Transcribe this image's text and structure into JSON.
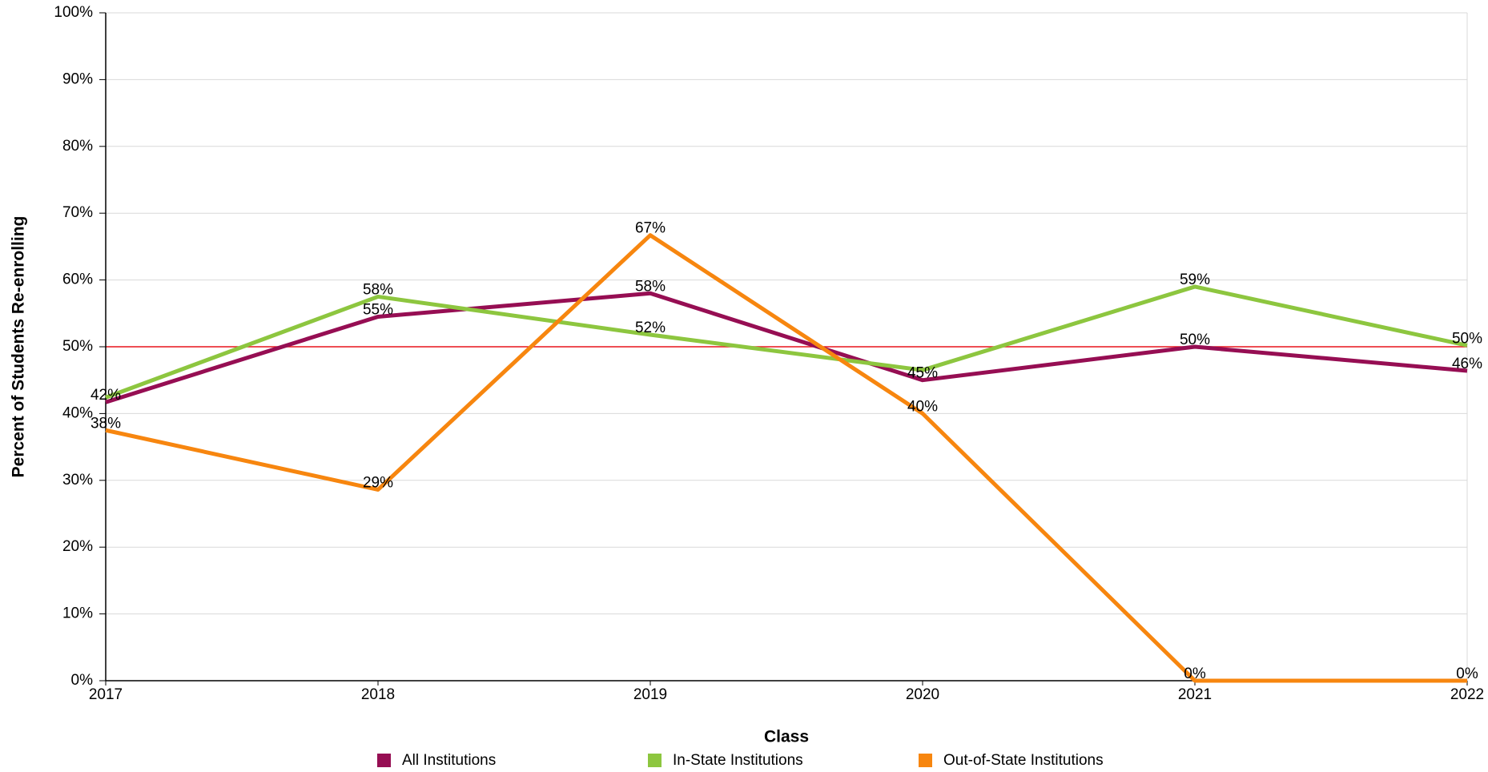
{
  "chart_data": {
    "type": "line",
    "x_label": "Class",
    "y_label": "Percent of Students Re-enrolling",
    "categories": [
      "2017",
      "2018",
      "2019",
      "2020",
      "2021",
      "2022"
    ],
    "series": [
      {
        "name": "All Institutions",
        "color": "#960e53",
        "values": [
          41.7,
          54.5,
          58,
          45,
          50,
          46.4
        ],
        "value_labels": [
          "42%",
          "55%",
          "58%",
          "45%",
          "50%",
          "46%"
        ]
      },
      {
        "name": "In-State Institutions",
        "color": "#8dc63f",
        "values": [
          42.4,
          57.5,
          51.8,
          46.5,
          59,
          50.2
        ],
        "value_labels": [
          null,
          "58%",
          "52%",
          null,
          "59%",
          "50%"
        ]
      },
      {
        "name": "Out-of-State Institutions",
        "color": "#f7860f",
        "values": [
          37.5,
          28.6,
          66.7,
          40,
          0,
          0
        ],
        "value_labels": [
          "38%",
          "29%",
          "67%",
          "40%",
          "0%",
          "0%"
        ]
      }
    ],
    "ylim": [
      0,
      100
    ],
    "yticks": [
      {
        "value": 0,
        "label": "0%"
      },
      {
        "value": 10,
        "label": "10%"
      },
      {
        "value": 20,
        "label": "20%"
      },
      {
        "value": 30,
        "label": "30%"
      },
      {
        "value": 40,
        "label": "40%"
      },
      {
        "value": 50,
        "label": "50%"
      },
      {
        "value": 60,
        "label": "60%"
      },
      {
        "value": 70,
        "label": "70%"
      },
      {
        "value": 80,
        "label": "80%"
      },
      {
        "value": 90,
        "label": "90%"
      },
      {
        "value": 100,
        "label": "100%"
      }
    ],
    "reference_line": {
      "value": 50,
      "color": "#e8141b"
    },
    "grid": true,
    "legend": "bottom"
  }
}
